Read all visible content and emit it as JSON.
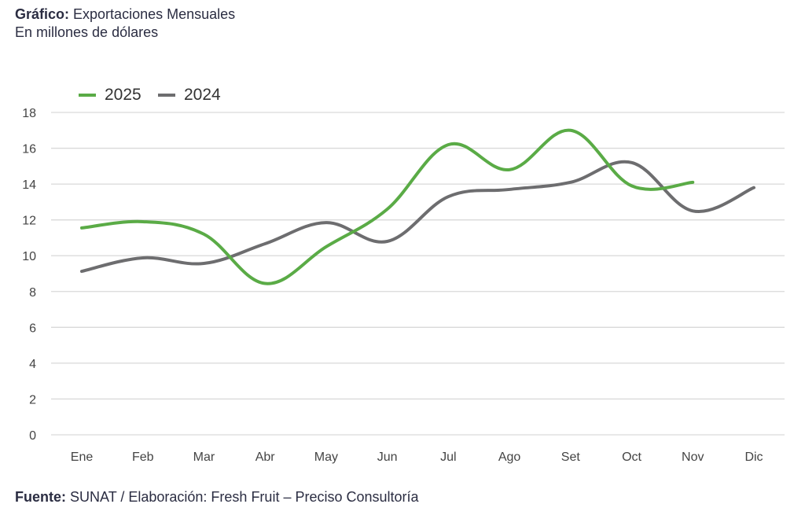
{
  "header": {
    "title_bold": "Gráfico:",
    "title": "Exportaciones Mensuales",
    "subtitle": "En millones de dólares"
  },
  "footer": {
    "source_bold": "Fuente:",
    "source": "SUNAT / Elaboración: Fresh Fruit – Preciso Consultoría"
  },
  "chart_data": {
    "type": "line",
    "categories": [
      "Ene",
      "Feb",
      "Mar",
      "Abr",
      "May",
      "Jun",
      "Jul",
      "Ago",
      "Set",
      "Oct",
      "Nov",
      "Dic"
    ],
    "series": [
      {
        "name": "2025",
        "color": "#5aab46",
        "values": [
          11.55,
          11.9,
          11.2,
          8.45,
          10.5,
          12.6,
          16.2,
          14.8,
          17.0,
          13.9,
          14.1,
          null
        ]
      },
      {
        "name": "2024",
        "color": "#6d6d6f",
        "values": [
          9.13,
          9.88,
          9.57,
          10.67,
          11.85,
          10.8,
          13.3,
          13.7,
          14.1,
          15.2,
          12.5,
          13.8
        ]
      }
    ],
    "ylim": [
      0,
      18
    ],
    "yticks": [
      0,
      2,
      4,
      6,
      8,
      10,
      12,
      14,
      16,
      18
    ],
    "grid": true,
    "smooth": true,
    "legend": "top-left"
  }
}
